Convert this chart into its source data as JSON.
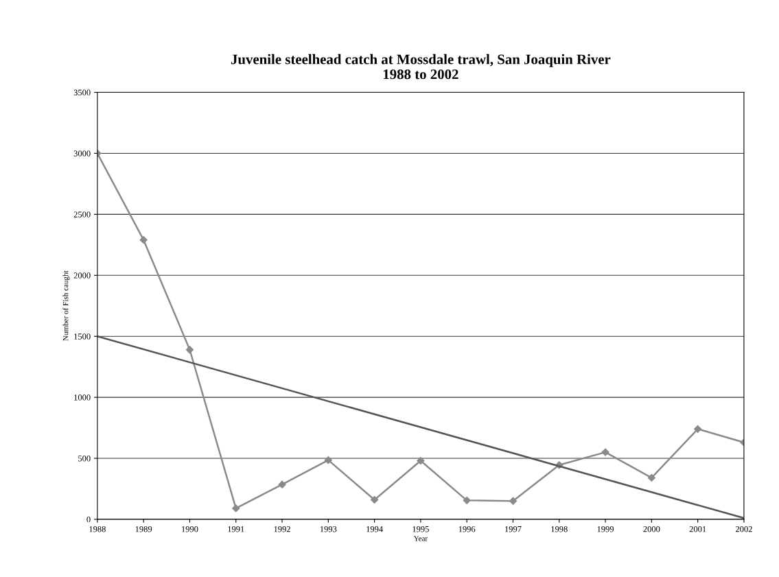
{
  "chart_data": {
    "type": "line",
    "title": "Juvenile steelhead catch at Mossdale trawl, San Joaquin River\n1988 to 2002",
    "xlabel": "Year",
    "ylabel": "Number of Fish caught",
    "x": [
      1988,
      1989,
      1990,
      1991,
      1992,
      1993,
      1994,
      1995,
      1996,
      1997,
      1998,
      1999,
      2000,
      2001,
      2002
    ],
    "series": [
      {
        "color": "#8a8a8a",
        "marker": "diamond",
        "values": [
          3000,
          2290,
          1390,
          90,
          285,
          485,
          160,
          480,
          155,
          150,
          445,
          550,
          340,
          740,
          630
        ]
      },
      {
        "color": "#555555",
        "marker": "none",
        "x": [
          1988,
          2002
        ],
        "values": [
          1500,
          10
        ]
      }
    ],
    "xlim": [
      1988,
      2002
    ],
    "xticks": [
      1988,
      1989,
      1990,
      1991,
      1992,
      1993,
      1994,
      1995,
      1996,
      1997,
      1998,
      1999,
      2000,
      2001,
      2002
    ],
    "ylim": [
      0,
      3500
    ],
    "yticks": [
      0,
      500,
      1000,
      1500,
      2000,
      2500,
      3000,
      3500
    ],
    "grid": "y",
    "legend": false
  }
}
